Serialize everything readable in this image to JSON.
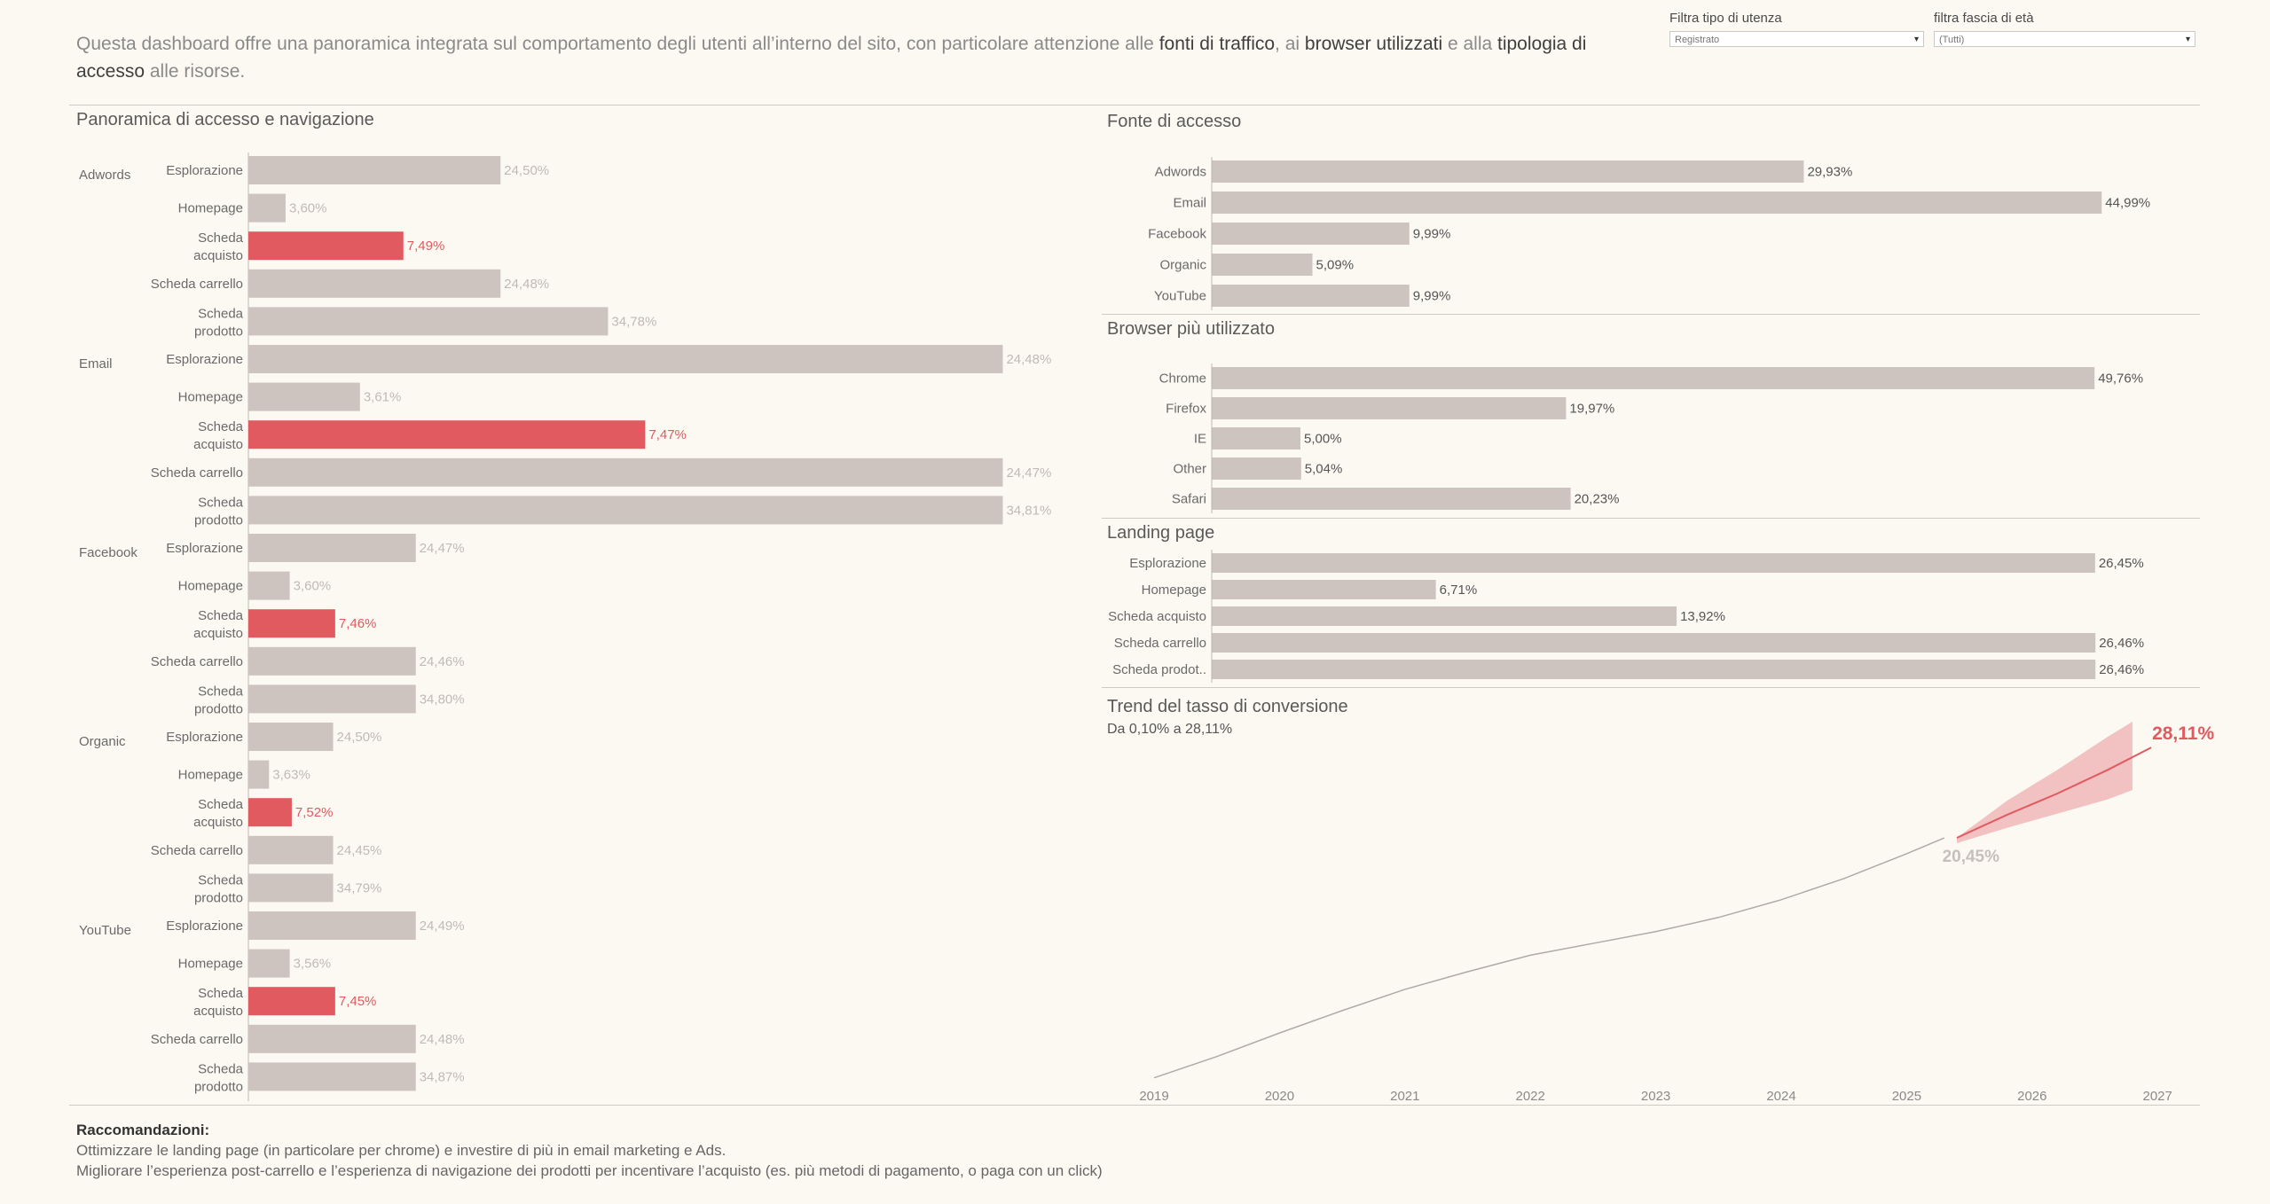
{
  "intro": {
    "p1": "Questa dashboard offre una panoramica integrata sul comportamento degli utenti all’interno del sito, con particolare attenzione alle ",
    "b1": "fonti di traffico",
    "p2": ", ai ",
    "b2": "browser utilizzati",
    "p3": " e alla ",
    "b3": "tipologia di accesso",
    "p4": " alle risorse."
  },
  "filters": {
    "user_type": {
      "label": "Filtra tipo di utenza",
      "value": "Registrato"
    },
    "age_range": {
      "label": "filtra fascia di età",
      "value": "(Tutti)"
    }
  },
  "colors": {
    "bar": "#cdc3bf",
    "highlight": "#e05a5f",
    "background": "#fcf9f3",
    "label_muted": "#c0bab6",
    "label_dark": "#555555"
  },
  "panels": {
    "access_nav": {
      "title": "Panoramica di accesso e navigazione"
    },
    "source": {
      "title": "Fonte di accesso"
    },
    "browser": {
      "title": "Browser più utilizzato"
    },
    "landing": {
      "title": "Landing page"
    },
    "trend": {
      "title": "Trend del tasso di conversione",
      "subtitle": "Da 0,10% a 28,11%",
      "start_label": "20,45%",
      "end_label": "28,11%"
    }
  },
  "chart_data": [
    {
      "type": "bar",
      "title": "Panoramica di accesso e navigazione",
      "groups": [
        "Adwords",
        "Email",
        "Facebook",
        "Organic",
        "YouTube"
      ],
      "categories": [
        "Esplorazione",
        "Homepage",
        "Scheda acquisto",
        "Scheda carrello",
        "Scheda prodotto"
      ],
      "label_lines": [
        [
          "Esplorazione"
        ],
        [
          "Homepage"
        ],
        [
          "Scheda",
          "acquisto"
        ],
        [
          "Scheda carrello"
        ],
        [
          "Scheda",
          "prodotto"
        ]
      ],
      "highlight_category": "Scheda acquisto",
      "series": [
        {
          "name": "Adwords",
          "values": [
            1.22,
            0.18,
            0.75,
            1.22,
            1.74
          ],
          "labels": [
            "24,50%",
            "3,60%",
            "7,49%",
            "24,48%",
            "34,78%"
          ]
        },
        {
          "name": "Email",
          "values": [
            3.65,
            0.54,
            1.92,
            3.65,
            3.65
          ],
          "labels": [
            "24,48%",
            "3,61%",
            "7,47%",
            "24,47%",
            "34,81%"
          ]
        },
        {
          "name": "Facebook",
          "values": [
            0.81,
            0.2,
            0.42,
            0.81,
            0.81
          ],
          "labels": [
            "24,47%",
            "3,60%",
            "7,46%",
            "24,46%",
            "34,80%"
          ]
        },
        {
          "name": "Organic",
          "values": [
            0.41,
            0.1,
            0.21,
            0.41,
            0.41
          ],
          "labels": [
            "24,50%",
            "3,63%",
            "7,52%",
            "24,45%",
            "34,79%"
          ]
        },
        {
          "name": "YouTube",
          "values": [
            0.81,
            0.2,
            0.42,
            0.81,
            0.81
          ],
          "labels": [
            "24,49%",
            "3,56%",
            "7,45%",
            "24,48%",
            "34,87%"
          ]
        }
      ]
    },
    {
      "type": "bar",
      "title": "Fonte di accesso",
      "categories": [
        "Adwords",
        "Email",
        "Facebook",
        "Organic",
        "YouTube"
      ],
      "values": [
        29.93,
        44.99,
        9.99,
        5.09,
        9.99
      ],
      "labels": [
        "29,93%",
        "44,99%",
        "9,99%",
        "5,09%",
        "9,99%"
      ]
    },
    {
      "type": "bar",
      "title": "Browser più utilizzato",
      "categories": [
        "Chrome",
        "Firefox",
        "IE",
        "Other",
        "Safari"
      ],
      "values": [
        49.76,
        19.97,
        5.0,
        5.04,
        20.23
      ],
      "labels": [
        "49,76%",
        "19,97%",
        "5,00%",
        "5,04%",
        "20,23%"
      ]
    },
    {
      "type": "bar",
      "title": "Landing page",
      "categories": [
        "Esplorazione",
        "Homepage",
        "Scheda acquisto",
        "Scheda carrello",
        "Scheda prodot.."
      ],
      "values": [
        26.45,
        6.71,
        13.92,
        26.46,
        26.46
      ],
      "labels": [
        "26,45%",
        "6,71%",
        "13,92%",
        "26,46%",
        "26,46%"
      ]
    },
    {
      "type": "line",
      "title": "Trend del tasso di conversione",
      "subtitle": "Da 0,10% a 28,11%",
      "xticks": [
        "2019",
        "2020",
        "2021",
        "2022",
        "2023",
        "2024",
        "2025",
        "2026",
        "2027"
      ],
      "xlim": [
        2019,
        2027
      ],
      "ylim": [
        0,
        30
      ],
      "series": [
        {
          "name": "actual",
          "x": [
            2019.0,
            2019.5,
            2020.0,
            2020.5,
            2021.0,
            2021.5,
            2022.0,
            2022.5,
            2023.0,
            2023.5,
            2024.0,
            2024.5,
            2025.0,
            2025.3
          ],
          "y": [
            0.1,
            1.9,
            3.9,
            5.8,
            7.6,
            9.1,
            10.5,
            11.5,
            12.5,
            13.7,
            15.2,
            17.0,
            19.1,
            20.45
          ]
        },
        {
          "name": "forecast",
          "x": [
            2025.4,
            2025.8,
            2026.2,
            2026.6,
            2026.95
          ],
          "y": [
            20.45,
            22.4,
            24.2,
            26.2,
            28.11
          ]
        },
        {
          "name": "forecast_upper",
          "x": [
            2025.4,
            2025.8,
            2026.2,
            2026.6,
            2026.8
          ],
          "y": [
            20.45,
            23.6,
            26.2,
            29.0,
            30.3
          ]
        },
        {
          "name": "forecast_lower",
          "x": [
            2025.4,
            2025.8,
            2026.2,
            2026.6,
            2026.8
          ],
          "y": [
            20.0,
            21.3,
            22.5,
            23.7,
            24.5
          ]
        }
      ]
    }
  ],
  "recommendations": {
    "heading": "Raccomandazioni:",
    "line1": "Ottimizzare le landing page (in particolare per chrome) e investire di più in  email marketing e Ads.",
    "line2": "Migliorare l’esperienza post-carrello e l’esperienza di navigazione dei prodotti per incentivare l’acquisto (es. più metodi di pagamento, o paga con un click)"
  }
}
